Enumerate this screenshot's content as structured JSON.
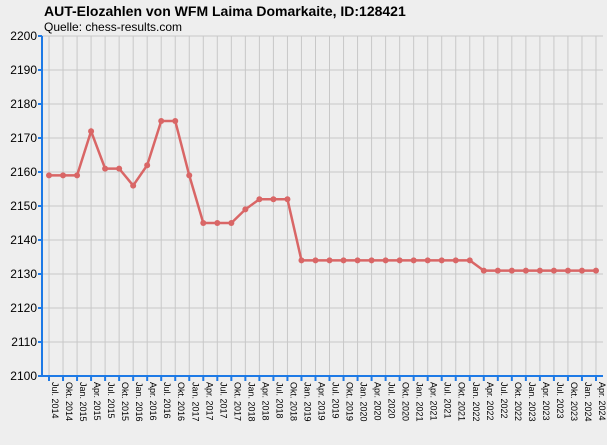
{
  "chart_data": {
    "type": "line",
    "title": "AUT-Elozahlen von WFM Laima Domarkaite, ID:128421",
    "subtitle": "Quelle: chess-results.com",
    "categories": [
      "Jul. 2014",
      "Okt. 2014",
      "Jan. 2015",
      "Apr. 2015",
      "Jul. 2015",
      "Okt. 2015",
      "Jan. 2016",
      "Apr. 2016",
      "Jul. 2016",
      "Okt. 2016",
      "Jan. 2017",
      "Apr. 2017",
      "Jul. 2017",
      "Okt. 2017",
      "Jan. 2018",
      "Apr. 2018",
      "Jul. 2018",
      "Okt. 2018",
      "Jan. 2019",
      "Apr. 2019",
      "Jul. 2019",
      "Okt. 2019",
      "Jan. 2020",
      "Apr. 2020",
      "Jul. 2020",
      "Okt. 2020",
      "Jan. 2021",
      "Apr. 2021",
      "Jul. 2021",
      "Okt. 2021",
      "Jan. 2022",
      "Apr. 2022",
      "Jul. 2022",
      "Okt. 2022",
      "Jan. 2023",
      "Apr. 2023",
      "Jul. 2023",
      "Okt. 2023",
      "Jan. 2024",
      "Apr. 2024"
    ],
    "values": [
      2159,
      2159,
      2159,
      2172,
      2161,
      2161,
      2156,
      2162,
      2175,
      2175,
      2159,
      2145,
      2145,
      2145,
      2149,
      2152,
      2152,
      2152,
      2134,
      2134,
      2134,
      2134,
      2134,
      2134,
      2134,
      2134,
      2134,
      2134,
      2134,
      2134,
      2134,
      2131,
      2131,
      2131,
      2131,
      2131,
      2131,
      2131,
      2131,
      2131
    ],
    "color": "#d96666",
    "ylim": [
      2100,
      2200
    ],
    "yticks": [
      2100,
      2110,
      2120,
      2130,
      2140,
      2150,
      2160,
      2170,
      2180,
      2190,
      2200
    ],
    "grid": true
  }
}
